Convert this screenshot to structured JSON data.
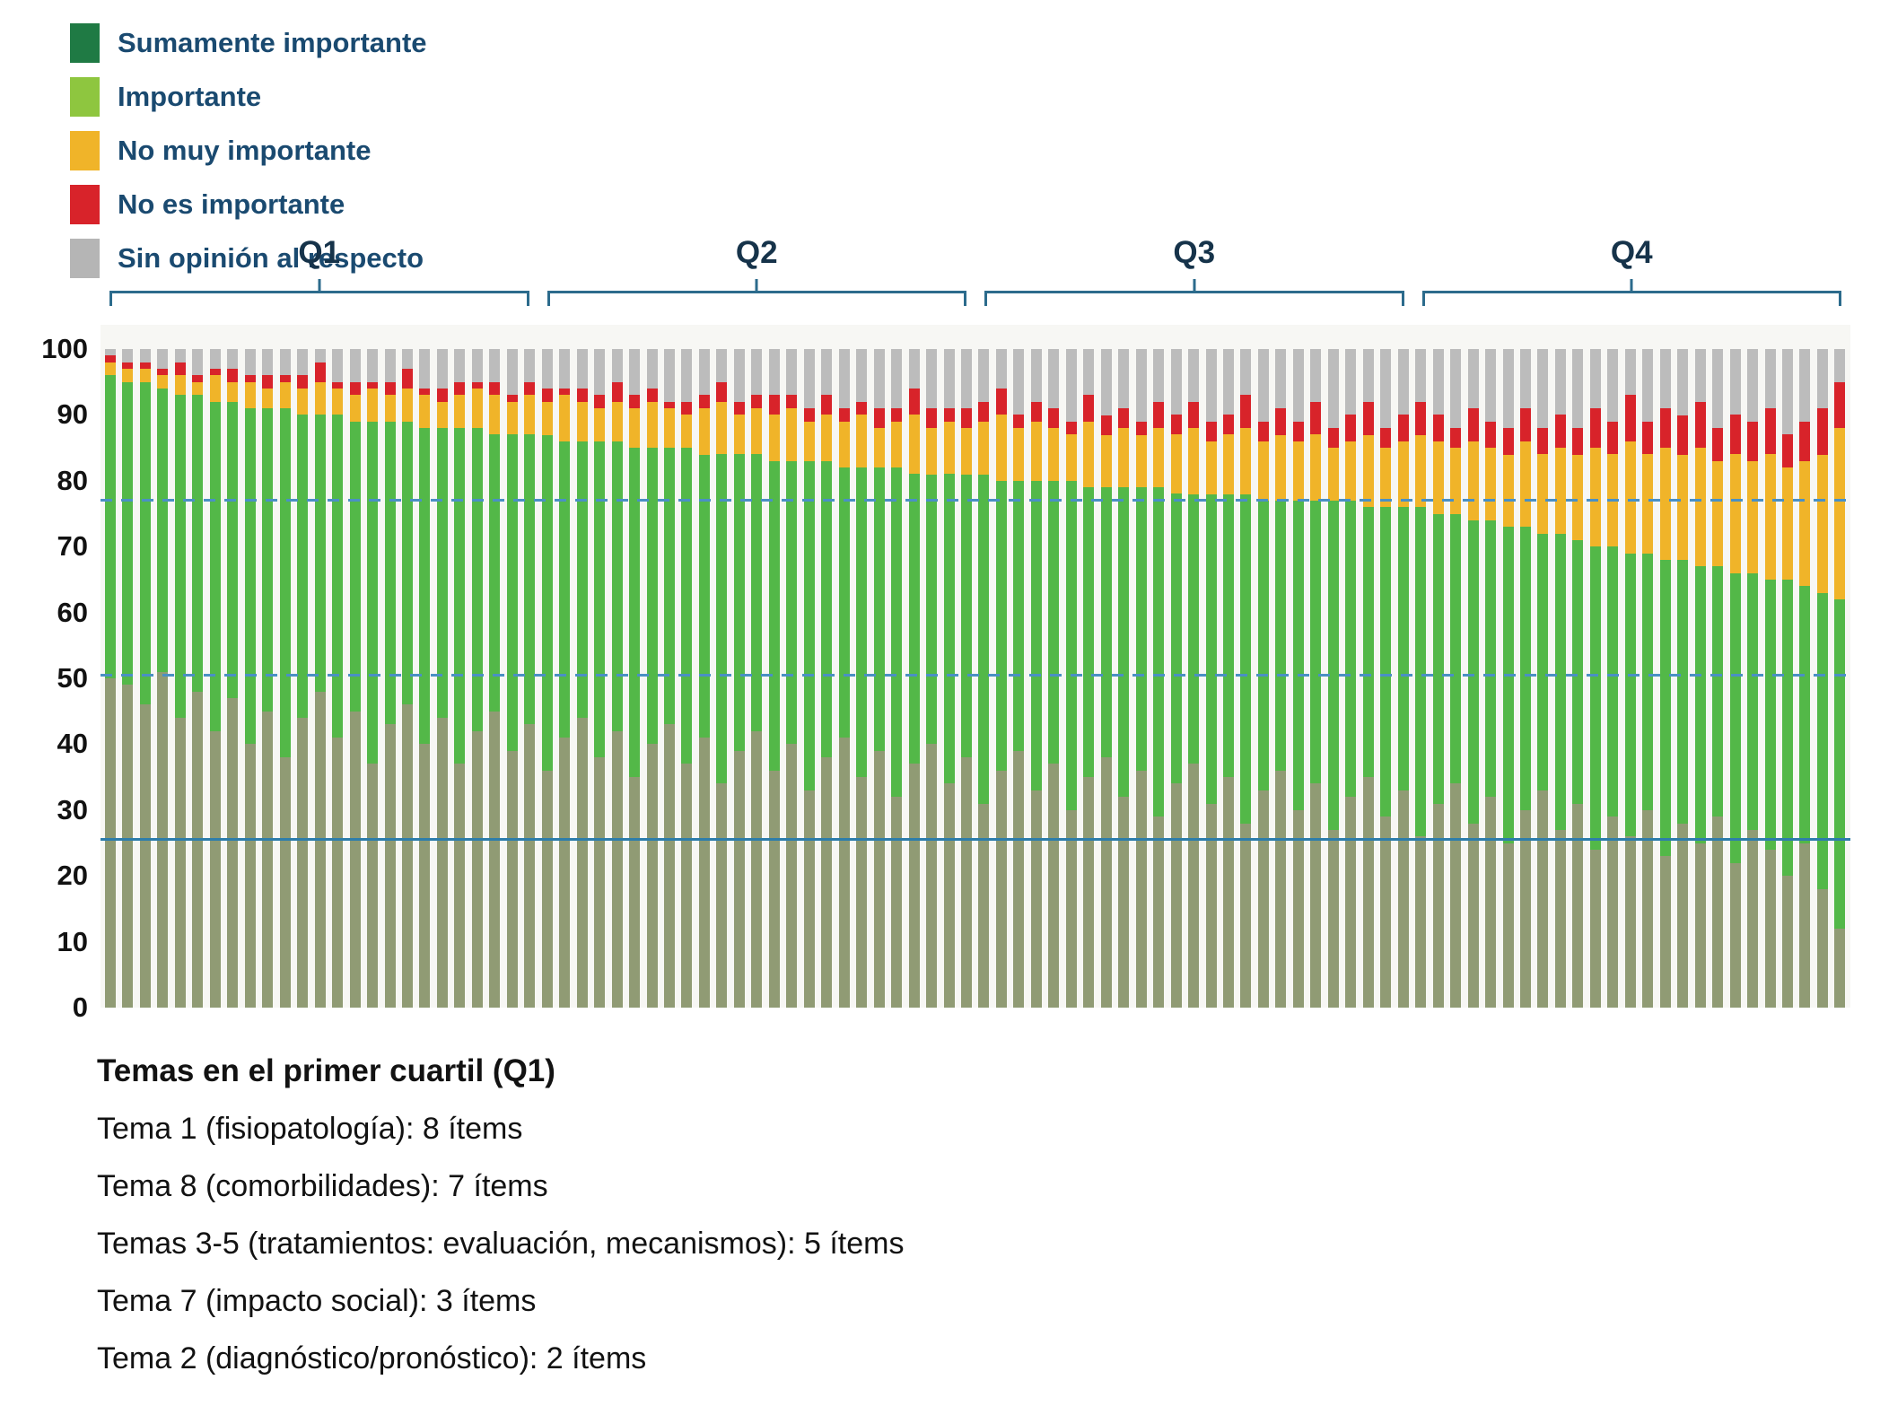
{
  "legend": {
    "text_color": "#1a4a70",
    "items": [
      {
        "label": "Sumamente importante",
        "color": "#1f7a44"
      },
      {
        "label": "Importante",
        "color": "#8ec63f"
      },
      {
        "label": "No muy importante",
        "color": "#f0b429"
      },
      {
        "label": "No es importante",
        "color": "#d8232a"
      },
      {
        "label": "Sin opinión al respecto",
        "color": "#b5b5b5"
      }
    ]
  },
  "quartiles": [
    {
      "label": "Q1"
    },
    {
      "label": "Q2"
    },
    {
      "label": "Q3"
    },
    {
      "label": "Q4"
    }
  ],
  "chart_data": {
    "type": "bar",
    "stacked": true,
    "units": "percent",
    "title": "",
    "xlabel": "",
    "ylabel": "",
    "ylim": [
      0,
      100
    ],
    "y_ticks": [
      0,
      10,
      20,
      30,
      40,
      50,
      60,
      70,
      80,
      90,
      100
    ],
    "grid": false,
    "legend_position": "top-left",
    "bars_per_quartile": 25,
    "series": [
      {
        "name": "Sumamente importante",
        "key": "sumamente-importante",
        "color": "#909b74"
      },
      {
        "name": "Importante",
        "key": "importante",
        "color": "#53b848"
      },
      {
        "name": "No muy importante",
        "key": "no-muy-importante",
        "color": "#f0b429"
      },
      {
        "name": "No es importante",
        "key": "no-es-importante",
        "color": "#d8232a"
      },
      {
        "name": "Sin opinión al respecto",
        "key": "sin-opinion-al-respecto",
        "color": "#bcbcbc"
      }
    ],
    "reference_lines": [
      {
        "value": 77,
        "style": "dashed",
        "color": "#4a90c4"
      },
      {
        "value": 50.5,
        "style": "dashed",
        "color": "#4a90c4"
      },
      {
        "value": 25.5,
        "style": "solid",
        "color": "#2d7dab"
      }
    ],
    "bars": [
      [
        50,
        46,
        2,
        1,
        1
      ],
      [
        49,
        46,
        2,
        1,
        2
      ],
      [
        46,
        49,
        2,
        1,
        2
      ],
      [
        51,
        43,
        2,
        1,
        3
      ],
      [
        44,
        49,
        3,
        2,
        2
      ],
      [
        48,
        45,
        2,
        1,
        4
      ],
      [
        42,
        50,
        4,
        1,
        3
      ],
      [
        47,
        45,
        3,
        2,
        3
      ],
      [
        40,
        51,
        4,
        1,
        4
      ],
      [
        45,
        46,
        3,
        2,
        4
      ],
      [
        38,
        53,
        4,
        1,
        4
      ],
      [
        44,
        46,
        4,
        2,
        4
      ],
      [
        48,
        42,
        5,
        3,
        2
      ],
      [
        41,
        49,
        4,
        1,
        5
      ],
      [
        45,
        44,
        4,
        2,
        5
      ],
      [
        37,
        52,
        5,
        1,
        5
      ],
      [
        43,
        46,
        4,
        2,
        5
      ],
      [
        46,
        43,
        5,
        3,
        3
      ],
      [
        40,
        48,
        5,
        1,
        6
      ],
      [
        44,
        44,
        4,
        2,
        6
      ],
      [
        37,
        51,
        5,
        2,
        5
      ],
      [
        42,
        46,
        6,
        1,
        5
      ],
      [
        45,
        42,
        6,
        2,
        5
      ],
      [
        39,
        48,
        5,
        1,
        7
      ],
      [
        43,
        44,
        6,
        2,
        5
      ],
      [
        36,
        51,
        5,
        2,
        6
      ],
      [
        41,
        45,
        7,
        1,
        6
      ],
      [
        44,
        42,
        6,
        2,
        6
      ],
      [
        38,
        48,
        5,
        2,
        7
      ],
      [
        42,
        44,
        6,
        3,
        5
      ],
      [
        35,
        50,
        6,
        2,
        7
      ],
      [
        40,
        45,
        7,
        2,
        6
      ],
      [
        43,
        42,
        6,
        1,
        8
      ],
      [
        37,
        48,
        5,
        2,
        8
      ],
      [
        41,
        43,
        7,
        2,
        7
      ],
      [
        34,
        50,
        8,
        3,
        5
      ],
      [
        39,
        45,
        6,
        2,
        8
      ],
      [
        42,
        42,
        7,
        2,
        7
      ],
      [
        36,
        47,
        7,
        3,
        7
      ],
      [
        40,
        43,
        8,
        2,
        7
      ],
      [
        33,
        50,
        6,
        2,
        9
      ],
      [
        38,
        45,
        7,
        3,
        7
      ],
      [
        41,
        41,
        7,
        2,
        9
      ],
      [
        35,
        47,
        8,
        2,
        8
      ],
      [
        39,
        43,
        6,
        3,
        9
      ],
      [
        32,
        50,
        7,
        2,
        9
      ],
      [
        37,
        44,
        9,
        4,
        6
      ],
      [
        40,
        41,
        7,
        3,
        9
      ],
      [
        34,
        47,
        8,
        2,
        9
      ],
      [
        38,
        43,
        7,
        3,
        9
      ],
      [
        31,
        50,
        8,
        3,
        8
      ],
      [
        36,
        44,
        10,
        4,
        6
      ],
      [
        39,
        41,
        8,
        2,
        10
      ],
      [
        33,
        47,
        9,
        3,
        8
      ],
      [
        37,
        43,
        8,
        3,
        9
      ],
      [
        30,
        50,
        7,
        2,
        11
      ],
      [
        35,
        44,
        10,
        4,
        7
      ],
      [
        38,
        41,
        8,
        3,
        10
      ],
      [
        32,
        47,
        9,
        3,
        9
      ],
      [
        36,
        43,
        8,
        2,
        11
      ],
      [
        29,
        50,
        9,
        4,
        8
      ],
      [
        34,
        44,
        9,
        3,
        10
      ],
      [
        37,
        41,
        10,
        4,
        8
      ],
      [
        31,
        47,
        8,
        3,
        11
      ],
      [
        35,
        43,
        9,
        3,
        10
      ],
      [
        28,
        50,
        10,
        5,
        7
      ],
      [
        33,
        44,
        9,
        3,
        11
      ],
      [
        36,
        41,
        10,
        4,
        9
      ],
      [
        30,
        47,
        9,
        3,
        11
      ],
      [
        34,
        43,
        10,
        5,
        8
      ],
      [
        27,
        50,
        8,
        3,
        12
      ],
      [
        32,
        45,
        9,
        4,
        10
      ],
      [
        35,
        41,
        11,
        5,
        8
      ],
      [
        29,
        47,
        9,
        3,
        12
      ],
      [
        33,
        43,
        10,
        4,
        10
      ],
      [
        26,
        50,
        11,
        5,
        8
      ],
      [
        31,
        44,
        11,
        4,
        10
      ],
      [
        34,
        41,
        10,
        3,
        12
      ],
      [
        28,
        46,
        12,
        5,
        9
      ],
      [
        32,
        42,
        11,
        4,
        11
      ],
      [
        25,
        48,
        11,
        4,
        12
      ],
      [
        30,
        43,
        13,
        5,
        9
      ],
      [
        33,
        39,
        12,
        4,
        12
      ],
      [
        27,
        45,
        13,
        5,
        10
      ],
      [
        31,
        40,
        13,
        4,
        12
      ],
      [
        24,
        46,
        15,
        6,
        9
      ],
      [
        29,
        41,
        14,
        5,
        11
      ],
      [
        26,
        43,
        17,
        7,
        7
      ],
      [
        30,
        39,
        15,
        5,
        11
      ],
      [
        23,
        45,
        17,
        6,
        9
      ],
      [
        28,
        40,
        16,
        6,
        10
      ],
      [
        25,
        42,
        18,
        7,
        8
      ],
      [
        29,
        38,
        16,
        5,
        12
      ],
      [
        22,
        44,
        18,
        6,
        10
      ],
      [
        27,
        39,
        17,
        6,
        11
      ],
      [
        24,
        41,
        19,
        7,
        9
      ],
      [
        20,
        45,
        17,
        5,
        13
      ],
      [
        25,
        39,
        19,
        6,
        11
      ],
      [
        18,
        45,
        21,
        7,
        9
      ],
      [
        12,
        50,
        26,
        7,
        5
      ]
    ]
  },
  "footer": {
    "title": "Temas en el primer cuartil (Q1)",
    "lines": [
      "Tema 1 (fisiopatología): 8 ítems",
      "Tema 8 (comorbilidades): 7 ítems",
      "Temas 3-5 (tratamientos: evaluación, mecanismos): 5 ítems",
      "Tema 7 (impacto social): 3 ítems",
      "Tema 2 (diagnóstico/pronóstico): 2 ítems"
    ]
  }
}
